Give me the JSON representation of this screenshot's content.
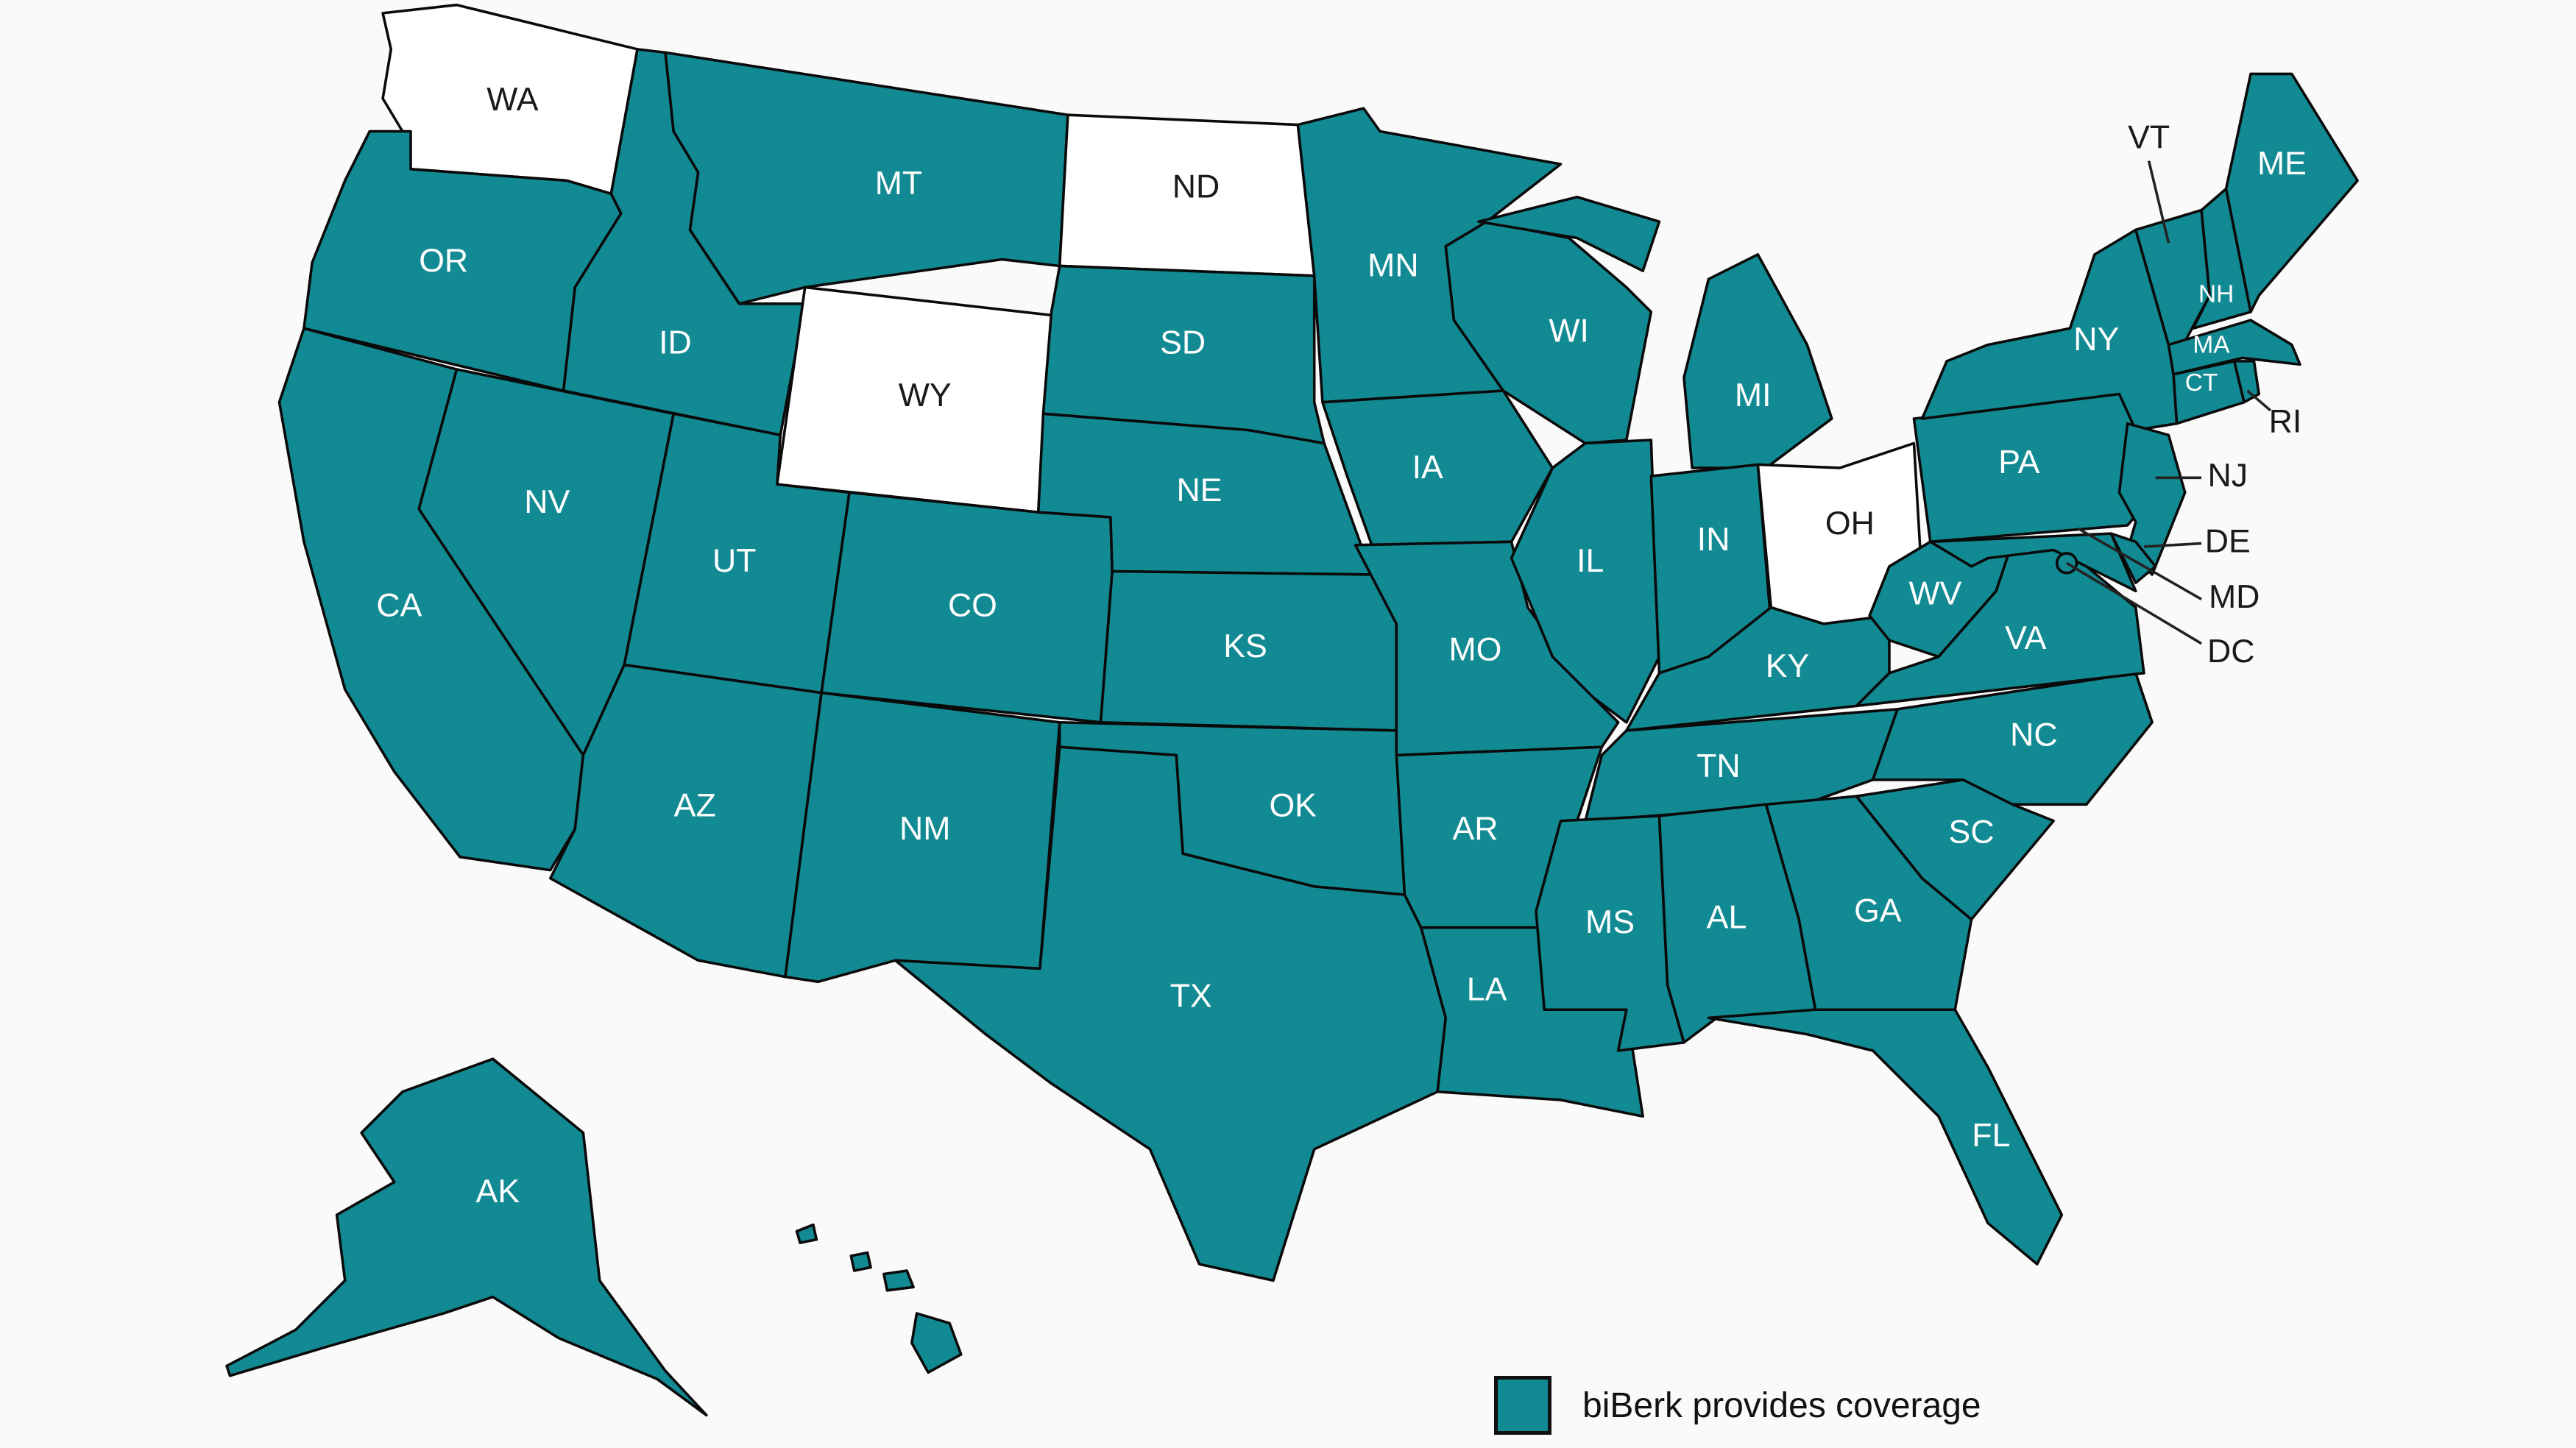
{
  "colors": {
    "covered": "#128a93",
    "not_covered": "#ffffff",
    "background": "#fafafa",
    "border": "#0a0a0a"
  },
  "legend": {
    "label": "biBerk provides coverage",
    "color": "#128a93"
  },
  "states": [
    {
      "code": "WA",
      "covered": false
    },
    {
      "code": "OR",
      "covered": true
    },
    {
      "code": "CA",
      "covered": true
    },
    {
      "code": "ID",
      "covered": true
    },
    {
      "code": "NV",
      "covered": true
    },
    {
      "code": "MT",
      "covered": true
    },
    {
      "code": "WY",
      "covered": false
    },
    {
      "code": "UT",
      "covered": true
    },
    {
      "code": "AZ",
      "covered": true
    },
    {
      "code": "CO",
      "covered": true
    },
    {
      "code": "NM",
      "covered": true
    },
    {
      "code": "ND",
      "covered": false
    },
    {
      "code": "SD",
      "covered": true
    },
    {
      "code": "NE",
      "covered": true
    },
    {
      "code": "KS",
      "covered": true
    },
    {
      "code": "OK",
      "covered": true
    },
    {
      "code": "TX",
      "covered": true
    },
    {
      "code": "MN",
      "covered": true
    },
    {
      "code": "IA",
      "covered": true
    },
    {
      "code": "MO",
      "covered": true
    },
    {
      "code": "AR",
      "covered": true
    },
    {
      "code": "LA",
      "covered": true
    },
    {
      "code": "WI",
      "covered": true
    },
    {
      "code": "IL",
      "covered": true
    },
    {
      "code": "MI",
      "covered": true
    },
    {
      "code": "IN",
      "covered": true
    },
    {
      "code": "OH",
      "covered": false
    },
    {
      "code": "KY",
      "covered": true
    },
    {
      "code": "TN",
      "covered": true
    },
    {
      "code": "MS",
      "covered": true
    },
    {
      "code": "AL",
      "covered": true
    },
    {
      "code": "GA",
      "covered": true
    },
    {
      "code": "FL",
      "covered": true
    },
    {
      "code": "SC",
      "covered": true
    },
    {
      "code": "NC",
      "covered": true
    },
    {
      "code": "VA",
      "covered": true
    },
    {
      "code": "WV",
      "covered": true
    },
    {
      "code": "PA",
      "covered": true
    },
    {
      "code": "NY",
      "covered": true
    },
    {
      "code": "VT",
      "covered": true
    },
    {
      "code": "NH",
      "covered": true
    },
    {
      "code": "ME",
      "covered": true
    },
    {
      "code": "MA",
      "covered": true
    },
    {
      "code": "CT",
      "covered": true
    },
    {
      "code": "RI",
      "covered": true
    },
    {
      "code": "NJ",
      "covered": true
    },
    {
      "code": "DE",
      "covered": true
    },
    {
      "code": "MD",
      "covered": true
    },
    {
      "code": "DC",
      "covered": true
    },
    {
      "code": "AK",
      "covered": true
    },
    {
      "code": "HI",
      "covered": true
    }
  ]
}
